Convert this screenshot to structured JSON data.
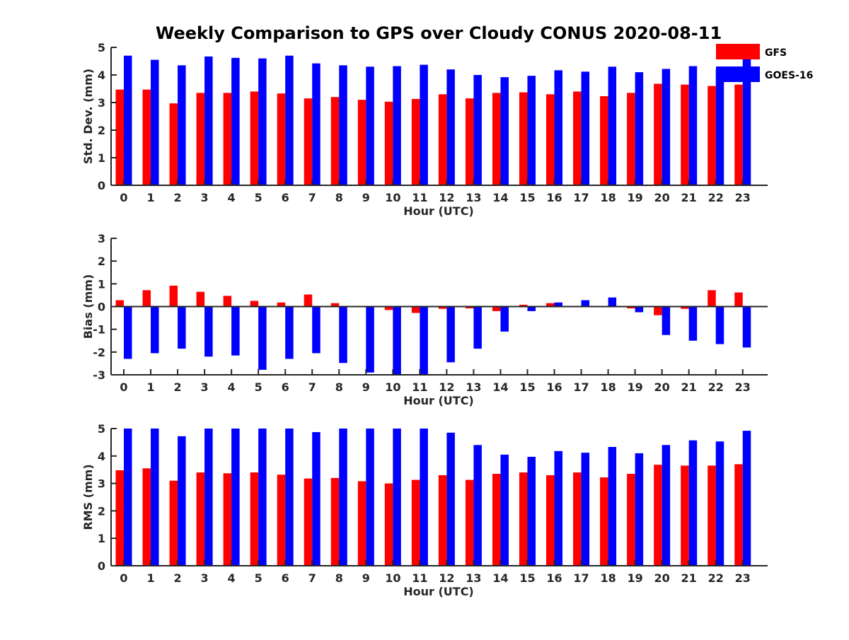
{
  "title": "Weekly Comparison to GPS over Cloudy CONUS 2020-08-11",
  "legend": [
    {
      "label": "GFS",
      "color": "#ff0000"
    },
    {
      "label": "GOES-16",
      "color": "#0000ff"
    }
  ],
  "chart_data": [
    {
      "type": "bar",
      "ylabel": "Std. Dev. (mm)",
      "xlabel": "Hour (UTC)",
      "ylim": [
        0,
        5
      ],
      "yticks": [
        0,
        1,
        2,
        3,
        4,
        5
      ],
      "categories": [
        "0",
        "1",
        "2",
        "3",
        "4",
        "5",
        "6",
        "7",
        "8",
        "9",
        "10",
        "11",
        "12",
        "13",
        "14",
        "15",
        "16",
        "17",
        "18",
        "19",
        "20",
        "21",
        "22",
        "23"
      ],
      "series": [
        {
          "name": "GFS",
          "color": "#ff0000",
          "values": [
            3.47,
            3.47,
            2.97,
            3.35,
            3.35,
            3.4,
            3.33,
            3.15,
            3.2,
            3.1,
            3.03,
            3.13,
            3.3,
            3.15,
            3.35,
            3.37,
            3.3,
            3.4,
            3.23,
            3.35,
            3.68,
            3.65,
            3.6,
            3.65
          ]
        },
        {
          "name": "GOES-16",
          "color": "#0000ff",
          "values": [
            4.7,
            4.55,
            4.35,
            4.67,
            4.62,
            4.6,
            4.7,
            4.42,
            4.35,
            4.3,
            4.32,
            4.37,
            4.2,
            4.0,
            3.92,
            3.97,
            4.17,
            4.12,
            4.3,
            4.1,
            4.22,
            4.32,
            4.2,
            4.62
          ]
        }
      ]
    },
    {
      "type": "bar",
      "ylabel": "Bias (mm)",
      "xlabel": "Hour (UTC)",
      "ylim": [
        -3,
        3
      ],
      "yticks": [
        -3,
        -2,
        -1,
        0,
        1,
        2,
        3
      ],
      "categories": [
        "0",
        "1",
        "2",
        "3",
        "4",
        "5",
        "6",
        "7",
        "8",
        "9",
        "10",
        "11",
        "12",
        "13",
        "14",
        "15",
        "16",
        "17",
        "18",
        "19",
        "20",
        "21",
        "22",
        "23"
      ],
      "series": [
        {
          "name": "GFS",
          "color": "#ff0000",
          "values": [
            0.28,
            0.72,
            0.92,
            0.65,
            0.47,
            0.25,
            0.18,
            0.53,
            0.15,
            -0.03,
            -0.15,
            -0.28,
            -0.1,
            -0.08,
            -0.2,
            0.08,
            0.15,
            0.0,
            0.0,
            -0.08,
            -0.38,
            -0.1,
            0.72,
            0.62
          ]
        },
        {
          "name": "GOES-16",
          "color": "#0000ff",
          "values": [
            -2.3,
            -2.05,
            -1.85,
            -2.2,
            -2.15,
            -2.78,
            -2.3,
            -2.05,
            -2.48,
            -2.9,
            -2.97,
            -3.0,
            -2.45,
            -1.85,
            -1.1,
            -0.2,
            0.18,
            0.28,
            0.4,
            -0.25,
            -1.25,
            -1.5,
            -1.65,
            -1.8
          ]
        }
      ]
    },
    {
      "type": "bar",
      "ylabel": "RMS (mm)",
      "xlabel": "Hour (UTC)",
      "ylim": [
        0,
        5
      ],
      "yticks": [
        0,
        1,
        2,
        3,
        4,
        5
      ],
      "categories": [
        "0",
        "1",
        "2",
        "3",
        "4",
        "5",
        "6",
        "7",
        "8",
        "9",
        "10",
        "11",
        "12",
        "13",
        "14",
        "15",
        "16",
        "17",
        "18",
        "19",
        "20",
        "21",
        "22",
        "23"
      ],
      "series": [
        {
          "name": "GFS",
          "color": "#ff0000",
          "values": [
            3.48,
            3.55,
            3.1,
            3.4,
            3.37,
            3.4,
            3.32,
            3.18,
            3.2,
            3.08,
            3.0,
            3.13,
            3.3,
            3.13,
            3.35,
            3.4,
            3.3,
            3.4,
            3.22,
            3.35,
            3.68,
            3.65,
            3.65,
            3.7
          ]
        },
        {
          "name": "GOES-16",
          "color": "#0000ff",
          "values": [
            5.0,
            5.0,
            4.72,
            5.0,
            5.0,
            5.0,
            5.0,
            4.87,
            5.0,
            5.0,
            5.0,
            5.0,
            4.85,
            4.4,
            4.05,
            3.97,
            4.18,
            4.12,
            4.33,
            4.1,
            4.4,
            4.57,
            4.53,
            4.92
          ]
        }
      ]
    }
  ]
}
